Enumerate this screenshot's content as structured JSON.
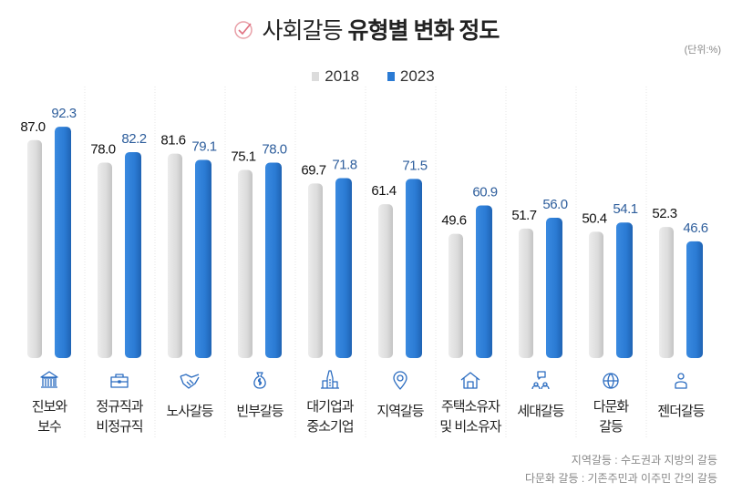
{
  "title": {
    "prefix": "사회갈등",
    "main": "유형별 변화 정도",
    "icon": "check-circle-icon"
  },
  "unit": "(단위:%)",
  "colors": {
    "s2018": "#dcdcdc",
    "s2023": "#2b7bd4",
    "label2023": "#2e5e9c",
    "label2018": "#111111",
    "icon": "#2b6cc0"
  },
  "chart_data": {
    "type": "bar",
    "categories": [
      [
        "진보와",
        "보수"
      ],
      [
        "정규직과",
        "비정규직"
      ],
      [
        "노사갈등"
      ],
      [
        "빈부갈등"
      ],
      [
        "대기업과",
        "중소기업"
      ],
      [
        "지역갈등"
      ],
      [
        "주택소유자",
        "및 비소유자"
      ],
      [
        "세대갈등"
      ],
      [
        "다문화",
        "갈등"
      ],
      [
        "젠더갈등"
      ]
    ],
    "category_icons": [
      "bank-icon",
      "briefcase-icon",
      "handshake-icon",
      "money-bag-icon",
      "building-icon",
      "location-pin-icon",
      "house-icon",
      "people-chat-icon",
      "globe-icon",
      "person-icon"
    ],
    "series": [
      {
        "name": "2018",
        "values": [
          87.0,
          78.0,
          81.6,
          75.1,
          69.7,
          61.4,
          49.6,
          51.7,
          50.4,
          52.3
        ]
      },
      {
        "name": "2023",
        "values": [
          92.3,
          82.2,
          79.1,
          78.0,
          71.8,
          71.5,
          60.9,
          56.0,
          54.1,
          46.6
        ]
      }
    ],
    "ylim": [
      0,
      100
    ],
    "grid": false,
    "legend": "top-center"
  },
  "footnotes": [
    "지역갈등 : 수도권과 지방의 갈등",
    "다문화 갈등 : 기존주민과 이주민 간의 갈등"
  ]
}
